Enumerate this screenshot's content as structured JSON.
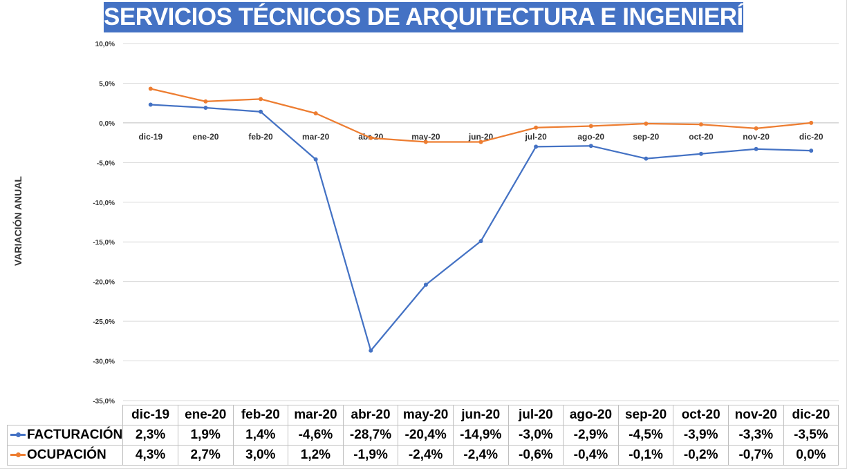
{
  "chart_data": {
    "type": "line",
    "title": "SERVICIOS TÉCNICOS DE ARQUITECTURA E INGENIERÍA",
    "ylabel": "VARIACIÓN ANUAL",
    "xlabel": "",
    "ylim": [
      -35,
      10
    ],
    "ytick_values": [
      10,
      5,
      0,
      -5,
      -10,
      -15,
      -20,
      -25,
      -30,
      -35
    ],
    "yticks": [
      "10,0%",
      "5,0%",
      "0,0%",
      "-5,0%",
      "-10,0%",
      "-15,0%",
      "-20,0%",
      "-25,0%",
      "-30,0%",
      "-35,0%"
    ],
    "grid": true,
    "categories": [
      "dic-19",
      "ene-20",
      "feb-20",
      "mar-20",
      "abr-20",
      "may-20",
      "jun-20",
      "jul-20",
      "ago-20",
      "sep-20",
      "oct-20",
      "nov-20",
      "dic-20"
    ],
    "series": [
      {
        "name": "FACTURACIÓN",
        "color": "#4472c4",
        "values": [
          2.3,
          1.9,
          1.4,
          -4.6,
          -28.7,
          -20.4,
          -14.9,
          -3.0,
          -2.9,
          -4.5,
          -3.9,
          -3.3,
          -3.5
        ],
        "labels": [
          "2,3%",
          "1,9%",
          "1,4%",
          "-4,6%",
          "-28,7%",
          "-20,4%",
          "-14,9%",
          "-3,0%",
          "-2,9%",
          "-4,5%",
          "-3,9%",
          "-3,3%",
          "-3,5%"
        ]
      },
      {
        "name": "OCUPACIÓN",
        "color": "#ed7d31",
        "values": [
          4.3,
          2.7,
          3.0,
          1.2,
          -1.9,
          -2.4,
          -2.4,
          -0.6,
          -0.4,
          -0.1,
          -0.2,
          -0.7,
          0.0
        ],
        "labels": [
          "4,3%",
          "2,7%",
          "3,0%",
          "1,2%",
          "-1,9%",
          "-2,4%",
          "-2,4%",
          "-0,6%",
          "-0,4%",
          "-0,1%",
          "-0,2%",
          "-0,7%",
          "0,0%"
        ]
      }
    ],
    "data_table": true
  }
}
